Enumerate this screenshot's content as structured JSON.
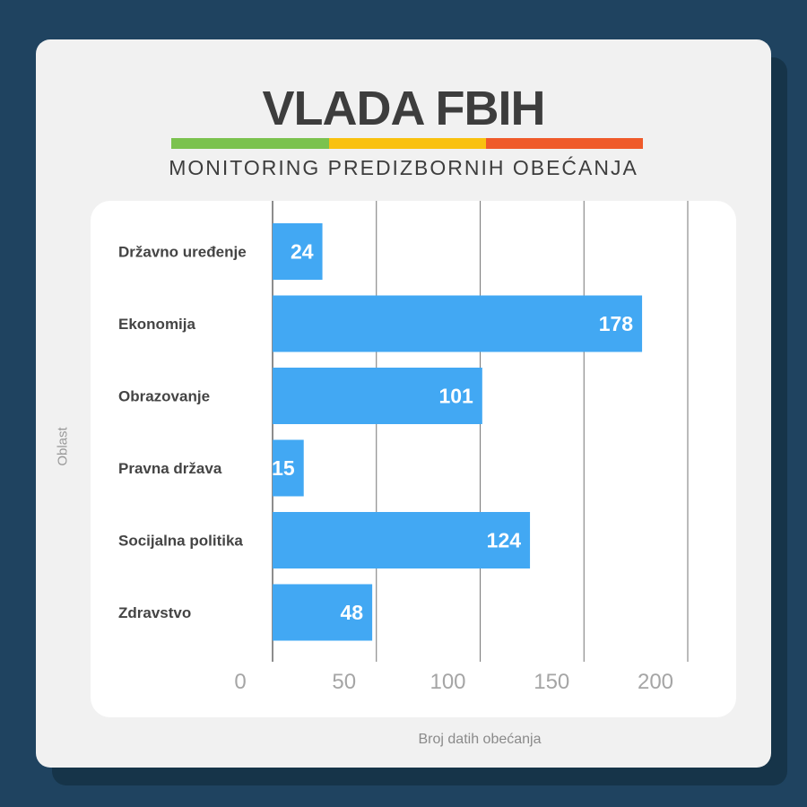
{
  "header": {
    "title": "VLADA FBIH",
    "subtitle": "MONITORING PREDIZBORNIH OBEĆANJA"
  },
  "colors": {
    "background": "#1f4360",
    "bar": "#42a8f3",
    "stripe_green": "#7bc24e",
    "stripe_yellow": "#f9c10f",
    "stripe_red": "#ef5a2a"
  },
  "chart_data": {
    "type": "bar",
    "orientation": "horizontal",
    "categories": [
      "Državno uređenje",
      "Ekonomija",
      "Obrazovanje",
      "Pravna država",
      "Socijalna politika",
      "Zdravstvo"
    ],
    "values": [
      24,
      178,
      101,
      15,
      124,
      48
    ],
    "xlabel": "Broj datih obećanja",
    "ylabel": "Oblast",
    "xlim": [
      0,
      200
    ],
    "xticks": [
      0,
      50,
      100,
      150,
      200
    ],
    "grid": true
  }
}
